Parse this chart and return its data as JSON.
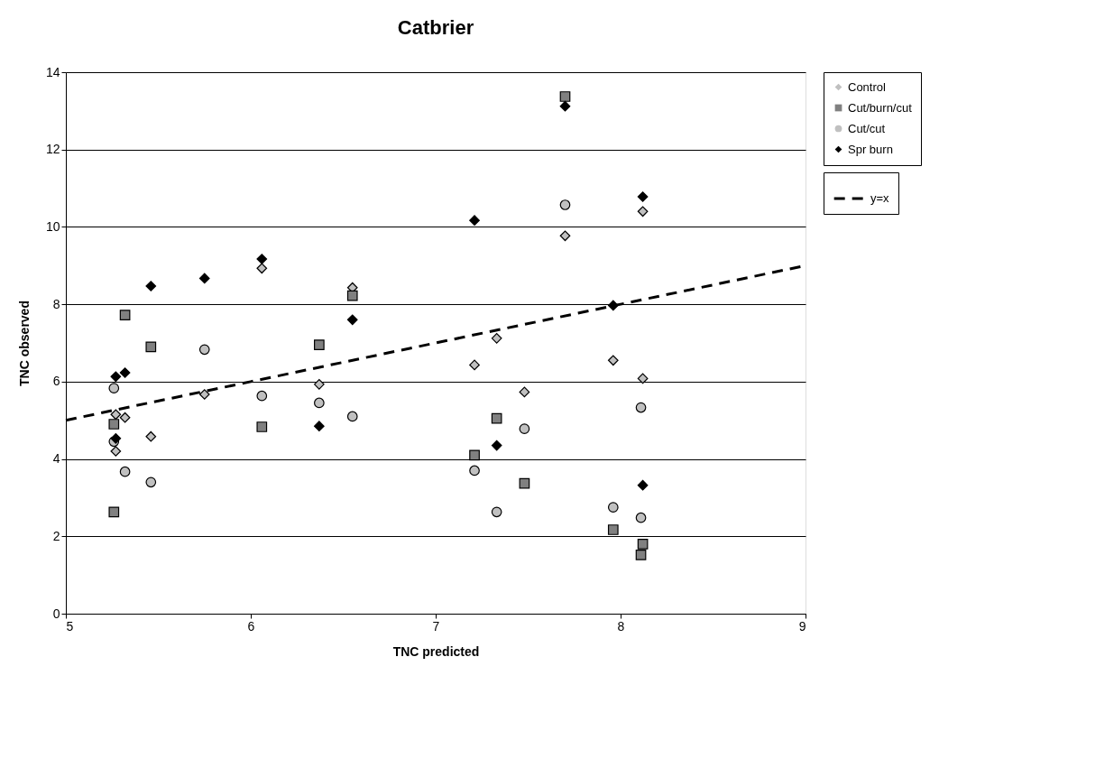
{
  "chart_data": {
    "type": "scatter",
    "title": "Catbrier",
    "xlabel": "TNC predicted",
    "ylabel": "TNC observed",
    "xlim": [
      5,
      9
    ],
    "xticks": [
      5,
      6,
      7,
      8,
      9
    ],
    "ylim": [
      0,
      14
    ],
    "yticks": [
      0,
      2,
      4,
      6,
      8,
      10,
      12,
      14
    ],
    "grid": "y",
    "legend": "right",
    "series": [
      {
        "name": "Control",
        "color": "#c0c0c0",
        "marker": "diamond",
        "x": [
          5.27,
          5.27,
          5.32,
          5.46,
          5.75,
          6.06,
          6.37,
          6.55,
          7.21,
          7.33,
          7.48,
          7.7,
          7.96,
          8.12,
          8.12
        ],
        "values": [
          4.2,
          5.15,
          5.07,
          4.58,
          5.67,
          8.93,
          5.93,
          8.43,
          6.43,
          7.12,
          5.73,
          9.77,
          6.55,
          10.4,
          6.08
        ]
      },
      {
        "name": "Cut/burn/cut",
        "color": "#808080",
        "marker": "square",
        "x": [
          5.26,
          5.26,
          5.32,
          5.46,
          6.06,
          6.37,
          6.55,
          7.21,
          7.33,
          7.48,
          7.7,
          7.96,
          8.12,
          8.11
        ],
        "values": [
          2.63,
          4.9,
          7.72,
          6.9,
          4.83,
          6.95,
          8.22,
          4.1,
          5.05,
          3.37,
          13.37,
          2.17,
          1.8,
          1.52
        ]
      },
      {
        "name": "Cut/cut",
        "color": "#c0c0c0",
        "marker": "circle",
        "x": [
          5.26,
          5.26,
          5.32,
          5.46,
          5.75,
          6.06,
          6.37,
          6.55,
          7.21,
          7.33,
          7.48,
          7.7,
          7.96,
          8.11,
          8.11
        ],
        "values": [
          5.83,
          4.45,
          3.67,
          3.4,
          6.83,
          5.63,
          5.45,
          5.1,
          3.7,
          2.63,
          4.78,
          10.57,
          2.75,
          2.48,
          5.33
        ]
      },
      {
        "name": "Spr burn",
        "color": "#000000",
        "marker": "diamond",
        "x": [
          5.27,
          5.27,
          5.32,
          5.46,
          5.75,
          6.06,
          6.37,
          6.55,
          7.21,
          7.33,
          7.7,
          7.96,
          8.12,
          8.12
        ],
        "values": [
          6.13,
          4.53,
          6.23,
          8.47,
          8.67,
          9.17,
          4.85,
          7.6,
          10.17,
          4.35,
          13.12,
          7.97,
          10.78,
          3.32
        ]
      },
      {
        "name": "y=x",
        "color": "#000000",
        "type": "line",
        "line_style": "dashed",
        "x": [
          5,
          6,
          7,
          8,
          9
        ],
        "values": [
          5,
          6,
          7,
          8,
          9
        ]
      }
    ]
  }
}
